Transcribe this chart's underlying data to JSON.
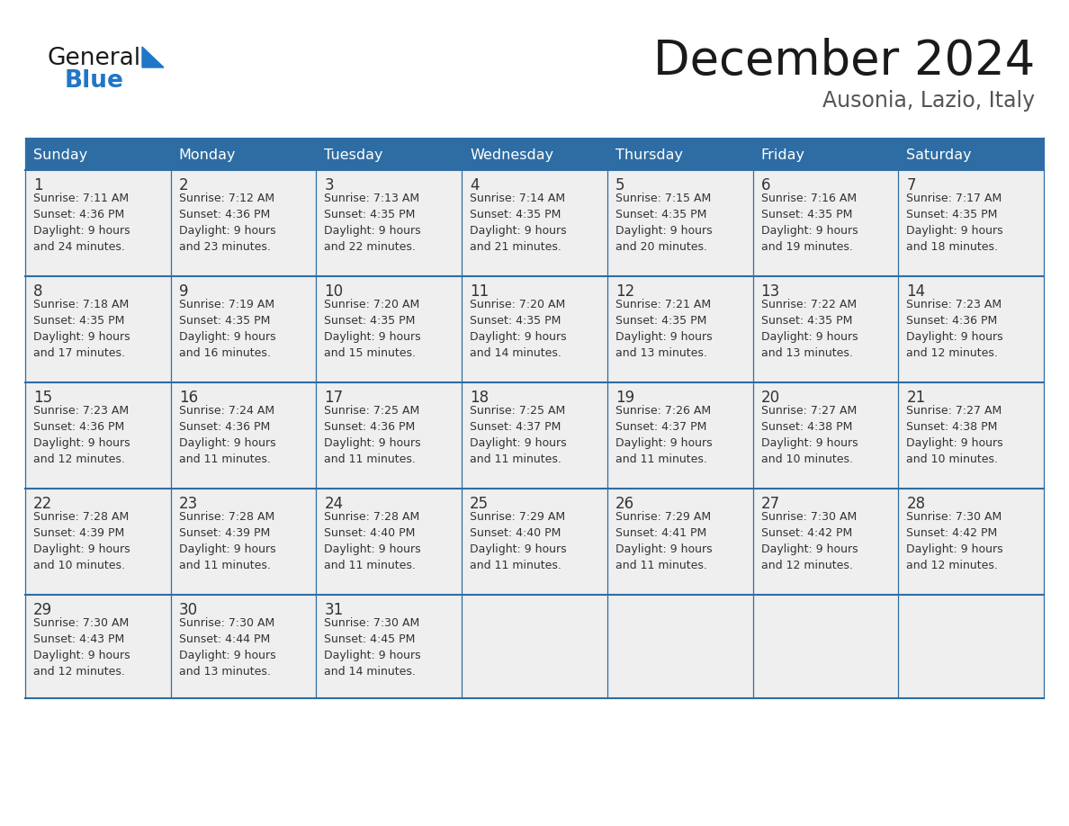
{
  "title": "December 2024",
  "subtitle": "Ausonia, Lazio, Italy",
  "header_color": "#2E6DA4",
  "header_text_color": "#FFFFFF",
  "cell_bg_color": "#EFEFEF",
  "day_number_color": "#333333",
  "cell_text_color": "#333333",
  "border_color": "#2E6DA4",
  "days_of_week": [
    "Sunday",
    "Monday",
    "Tuesday",
    "Wednesday",
    "Thursday",
    "Friday",
    "Saturday"
  ],
  "weeks": [
    [
      {
        "day": "1",
        "sunrise": "7:11 AM",
        "sunset": "4:36 PM",
        "daylight_h": "9 hours",
        "daylight_m": "and 24 minutes."
      },
      {
        "day": "2",
        "sunrise": "7:12 AM",
        "sunset": "4:36 PM",
        "daylight_h": "9 hours",
        "daylight_m": "and 23 minutes."
      },
      {
        "day": "3",
        "sunrise": "7:13 AM",
        "sunset": "4:35 PM",
        "daylight_h": "9 hours",
        "daylight_m": "and 22 minutes."
      },
      {
        "day": "4",
        "sunrise": "7:14 AM",
        "sunset": "4:35 PM",
        "daylight_h": "9 hours",
        "daylight_m": "and 21 minutes."
      },
      {
        "day": "5",
        "sunrise": "7:15 AM",
        "sunset": "4:35 PM",
        "daylight_h": "9 hours",
        "daylight_m": "and 20 minutes."
      },
      {
        "day": "6",
        "sunrise": "7:16 AM",
        "sunset": "4:35 PM",
        "daylight_h": "9 hours",
        "daylight_m": "and 19 minutes."
      },
      {
        "day": "7",
        "sunrise": "7:17 AM",
        "sunset": "4:35 PM",
        "daylight_h": "9 hours",
        "daylight_m": "and 18 minutes."
      }
    ],
    [
      {
        "day": "8",
        "sunrise": "7:18 AM",
        "sunset": "4:35 PM",
        "daylight_h": "9 hours",
        "daylight_m": "and 17 minutes."
      },
      {
        "day": "9",
        "sunrise": "7:19 AM",
        "sunset": "4:35 PM",
        "daylight_h": "9 hours",
        "daylight_m": "and 16 minutes."
      },
      {
        "day": "10",
        "sunrise": "7:20 AM",
        "sunset": "4:35 PM",
        "daylight_h": "9 hours",
        "daylight_m": "and 15 minutes."
      },
      {
        "day": "11",
        "sunrise": "7:20 AM",
        "sunset": "4:35 PM",
        "daylight_h": "9 hours",
        "daylight_m": "and 14 minutes."
      },
      {
        "day": "12",
        "sunrise": "7:21 AM",
        "sunset": "4:35 PM",
        "daylight_h": "9 hours",
        "daylight_m": "and 13 minutes."
      },
      {
        "day": "13",
        "sunrise": "7:22 AM",
        "sunset": "4:35 PM",
        "daylight_h": "9 hours",
        "daylight_m": "and 13 minutes."
      },
      {
        "day": "14",
        "sunrise": "7:23 AM",
        "sunset": "4:36 PM",
        "daylight_h": "9 hours",
        "daylight_m": "and 12 minutes."
      }
    ],
    [
      {
        "day": "15",
        "sunrise": "7:23 AM",
        "sunset": "4:36 PM",
        "daylight_h": "9 hours",
        "daylight_m": "and 12 minutes."
      },
      {
        "day": "16",
        "sunrise": "7:24 AM",
        "sunset": "4:36 PM",
        "daylight_h": "9 hours",
        "daylight_m": "and 11 minutes."
      },
      {
        "day": "17",
        "sunrise": "7:25 AM",
        "sunset": "4:36 PM",
        "daylight_h": "9 hours",
        "daylight_m": "and 11 minutes."
      },
      {
        "day": "18",
        "sunrise": "7:25 AM",
        "sunset": "4:37 PM",
        "daylight_h": "9 hours",
        "daylight_m": "and 11 minutes."
      },
      {
        "day": "19",
        "sunrise": "7:26 AM",
        "sunset": "4:37 PM",
        "daylight_h": "9 hours",
        "daylight_m": "and 11 minutes."
      },
      {
        "day": "20",
        "sunrise": "7:27 AM",
        "sunset": "4:38 PM",
        "daylight_h": "9 hours",
        "daylight_m": "and 10 minutes."
      },
      {
        "day": "21",
        "sunrise": "7:27 AM",
        "sunset": "4:38 PM",
        "daylight_h": "9 hours",
        "daylight_m": "and 10 minutes."
      }
    ],
    [
      {
        "day": "22",
        "sunrise": "7:28 AM",
        "sunset": "4:39 PM",
        "daylight_h": "9 hours",
        "daylight_m": "and 10 minutes."
      },
      {
        "day": "23",
        "sunrise": "7:28 AM",
        "sunset": "4:39 PM",
        "daylight_h": "9 hours",
        "daylight_m": "and 11 minutes."
      },
      {
        "day": "24",
        "sunrise": "7:28 AM",
        "sunset": "4:40 PM",
        "daylight_h": "9 hours",
        "daylight_m": "and 11 minutes."
      },
      {
        "day": "25",
        "sunrise": "7:29 AM",
        "sunset": "4:40 PM",
        "daylight_h": "9 hours",
        "daylight_m": "and 11 minutes."
      },
      {
        "day": "26",
        "sunrise": "7:29 AM",
        "sunset": "4:41 PM",
        "daylight_h": "9 hours",
        "daylight_m": "and 11 minutes."
      },
      {
        "day": "27",
        "sunrise": "7:30 AM",
        "sunset": "4:42 PM",
        "daylight_h": "9 hours",
        "daylight_m": "and 12 minutes."
      },
      {
        "day": "28",
        "sunrise": "7:30 AM",
        "sunset": "4:42 PM",
        "daylight_h": "9 hours",
        "daylight_m": "and 12 minutes."
      }
    ],
    [
      {
        "day": "29",
        "sunrise": "7:30 AM",
        "sunset": "4:43 PM",
        "daylight_h": "9 hours",
        "daylight_m": "and 12 minutes."
      },
      {
        "day": "30",
        "sunrise": "7:30 AM",
        "sunset": "4:44 PM",
        "daylight_h": "9 hours",
        "daylight_m": "and 13 minutes."
      },
      {
        "day": "31",
        "sunrise": "7:30 AM",
        "sunset": "4:45 PM",
        "daylight_h": "9 hours",
        "daylight_m": "and 14 minutes."
      },
      null,
      null,
      null,
      null
    ]
  ],
  "logo_general_color": "#1a1a1a",
  "logo_blue_color": "#2176C7",
  "logo_triangle_color": "#2176C7",
  "title_color": "#1a1a1a",
  "subtitle_color": "#555555"
}
